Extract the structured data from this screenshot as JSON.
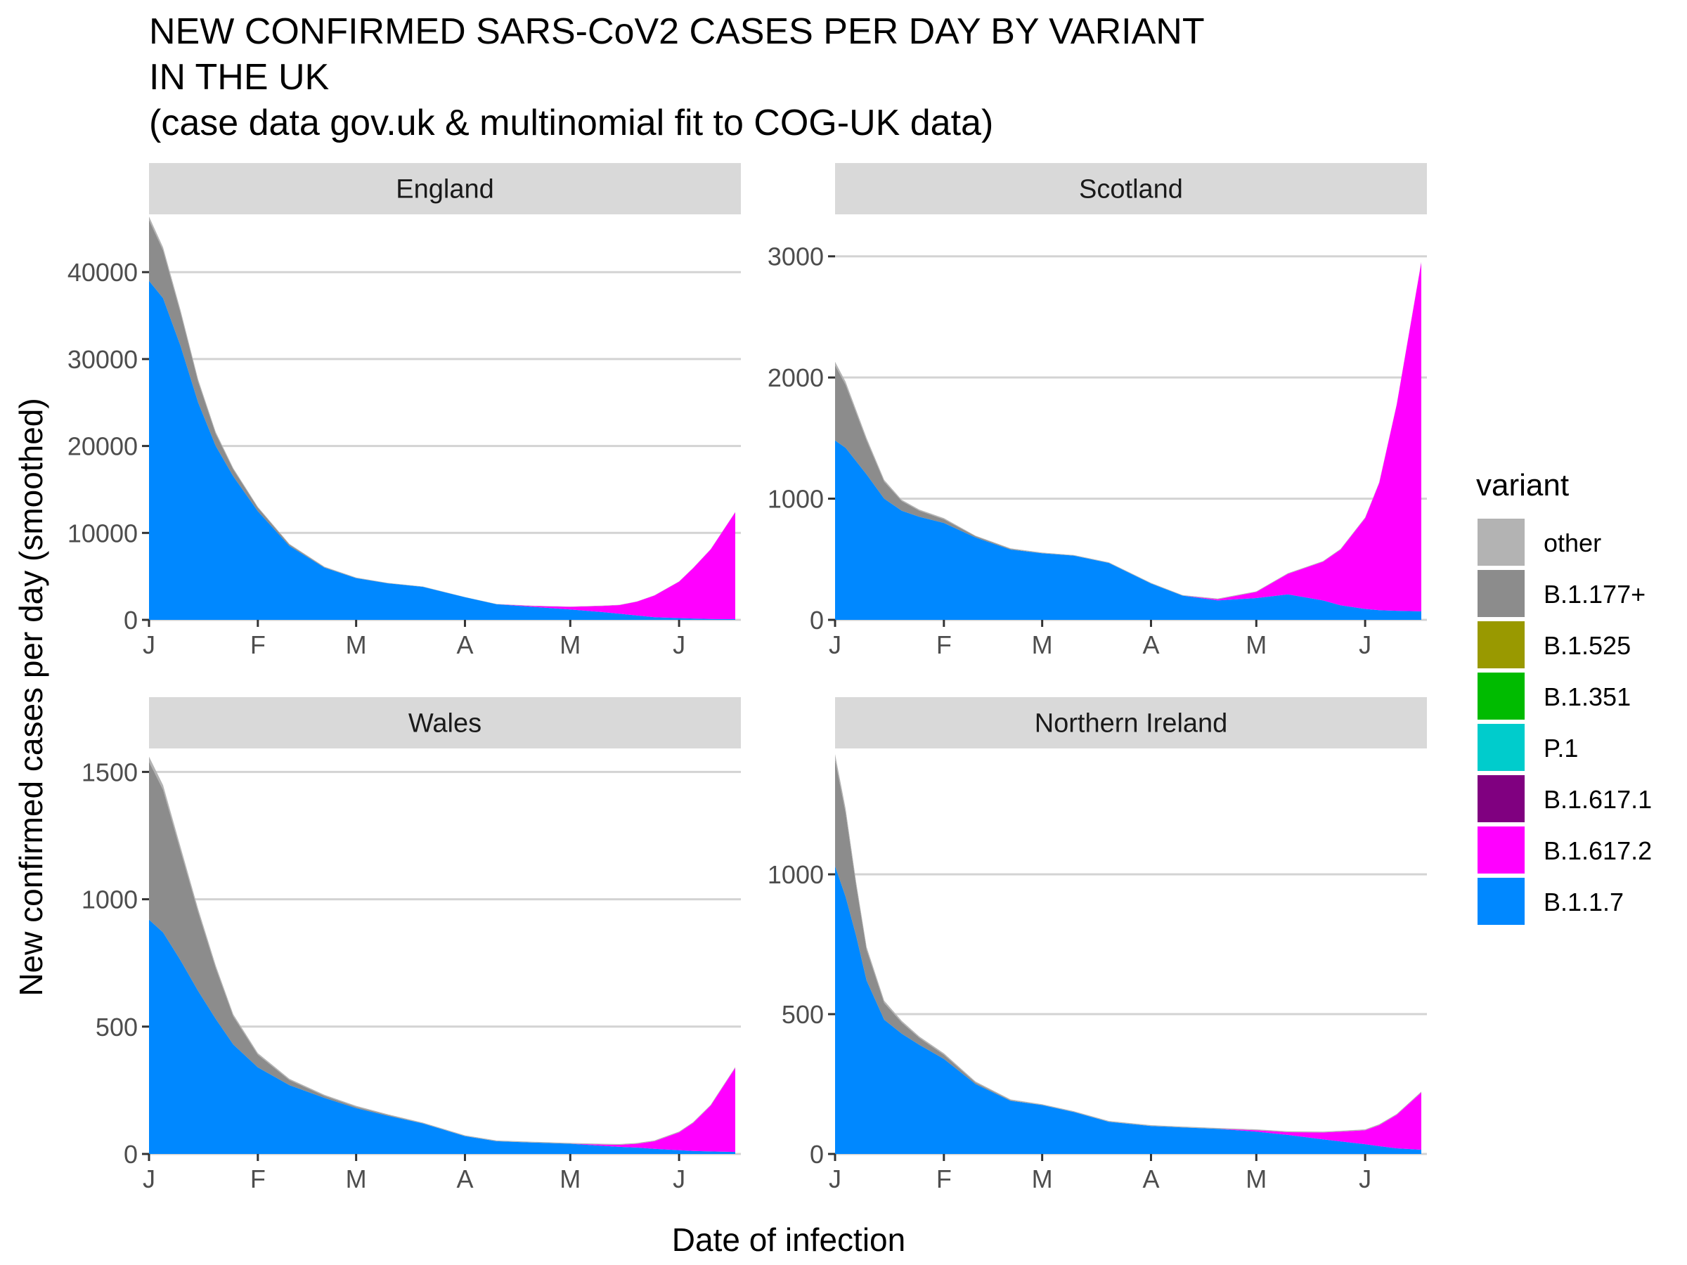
{
  "chart_data": {
    "type": "area",
    "title_lines": [
      "NEW CONFIRMED SARS-CoV2 CASES PER DAY BY VARIANT",
      "IN THE UK",
      "(case data gov.uk & multinomial fit to COG-UK data)"
    ],
    "xlabel": "Date of infection",
    "ylabel": "New confirmed cases per day (smoothed)",
    "x_tick_labels": [
      "J",
      "F",
      "M",
      "A",
      "M",
      "J"
    ],
    "x_tick_dates": [
      "2021-01-01",
      "2021-02-01",
      "2021-03-01",
      "2021-04-01",
      "2021-05-01",
      "2021-06-01"
    ],
    "x_range": [
      "2021-01-01",
      "2021-06-17"
    ],
    "grid": true,
    "legend_position": "right",
    "legend": {
      "title": "variant",
      "entries": [
        {
          "label": "other",
          "color": "#b3b3b3"
        },
        {
          "label": "B.1.177+",
          "color": "#8c8c8c"
        },
        {
          "label": "B.1.525",
          "color": "#999900"
        },
        {
          "label": "B.1.351",
          "color": "#00bb00"
        },
        {
          "label": "P.1",
          "color": "#00cccc"
        },
        {
          "label": "B.1.617.1",
          "color": "#800080"
        },
        {
          "label": "B.1.617.2",
          "color": "#ff00ff"
        },
        {
          "label": "B.1.1.7",
          "color": "#0088ff"
        }
      ]
    },
    "panels": [
      {
        "name": "England",
        "ylim": [
          0,
          46000
        ],
        "y_ticks": [
          0,
          10000,
          20000,
          30000,
          40000
        ],
        "x": [
          "2021-01-01",
          "2021-01-05",
          "2021-01-10",
          "2021-01-15",
          "2021-01-20",
          "2021-01-25",
          "2021-02-01",
          "2021-02-10",
          "2021-02-20",
          "2021-03-01",
          "2021-03-10",
          "2021-03-20",
          "2021-04-01",
          "2021-04-10",
          "2021-04-20",
          "2021-05-01",
          "2021-05-10",
          "2021-05-15",
          "2021-05-20",
          "2021-05-25",
          "2021-06-01",
          "2021-06-05",
          "2021-06-10",
          "2021-06-17"
        ],
        "series": [
          {
            "name": "B.1.1.7",
            "values": [
              39000,
              37000,
              31500,
              25000,
              20000,
              16500,
              12500,
              8500,
              6000,
              4800,
              4200,
              3800,
              2600,
              1800,
              1500,
              1200,
              900,
              700,
              500,
              300,
              200,
              150,
              100,
              80
            ]
          },
          {
            "name": "B.1.617.2",
            "values": [
              0,
              0,
              0,
              0,
              0,
              0,
              0,
              0,
              0,
              0,
              0,
              0,
              0,
              0,
              100,
              300,
              700,
              1000,
              1600,
              2500,
              4200,
              5800,
              8000,
              12300
            ]
          },
          {
            "name": "B.1.177+",
            "values": [
              7000,
              5500,
              3800,
              2400,
              1400,
              800,
              400,
              150,
              50,
              20,
              10,
              0,
              0,
              0,
              0,
              0,
              0,
              0,
              0,
              0,
              0,
              0,
              0,
              0
            ]
          },
          {
            "name": "other",
            "values": [
              400,
              350,
              300,
              250,
              200,
              150,
              100,
              80,
              60,
              50,
              40,
              40,
              30,
              30,
              30,
              30,
              30,
              30,
              30,
              30,
              30,
              30,
              30,
              30
            ]
          }
        ]
      },
      {
        "name": "Scotland",
        "ylim": [
          0,
          3300
        ],
        "y_ticks": [
          0,
          1000,
          2000,
          3000
        ],
        "x": [
          "2021-01-01",
          "2021-01-04",
          "2021-01-10",
          "2021-01-15",
          "2021-01-20",
          "2021-01-25",
          "2021-02-01",
          "2021-02-10",
          "2021-02-20",
          "2021-03-01",
          "2021-03-10",
          "2021-03-20",
          "2021-04-01",
          "2021-04-10",
          "2021-04-20",
          "2021-05-01",
          "2021-05-10",
          "2021-05-20",
          "2021-05-25",
          "2021-06-01",
          "2021-06-05",
          "2021-06-10",
          "2021-06-17"
        ],
        "series": [
          {
            "name": "B.1.1.7",
            "values": [
              1480,
              1420,
              1200,
              1000,
              900,
              850,
              800,
              680,
              580,
              550,
              530,
              470,
              300,
              200,
              160,
              180,
              210,
              160,
              120,
              90,
              80,
              75,
              70
            ]
          },
          {
            "name": "B.1.617.2",
            "values": [
              0,
              0,
              0,
              0,
              0,
              0,
              0,
              0,
              0,
              0,
              0,
              0,
              0,
              0,
              10,
              50,
              170,
              320,
              460,
              750,
              1050,
              1700,
              2880
            ]
          },
          {
            "name": "B.1.177+",
            "values": [
              620,
              520,
              280,
              140,
              80,
              50,
              30,
              10,
              5,
              0,
              0,
              0,
              0,
              0,
              0,
              0,
              0,
              0,
              0,
              0,
              0,
              0,
              0
            ]
          },
          {
            "name": "other",
            "values": [
              30,
              25,
              20,
              15,
              10,
              10,
              10,
              5,
              5,
              5,
              5,
              5,
              5,
              5,
              5,
              5,
              5,
              5,
              5,
              5,
              5,
              5,
              5
            ]
          }
        ]
      },
      {
        "name": "Wales",
        "ylim": [
          0,
          1570
        ],
        "y_ticks": [
          0,
          500,
          1000,
          1500
        ],
        "x": [
          "2021-01-01",
          "2021-01-05",
          "2021-01-10",
          "2021-01-15",
          "2021-01-20",
          "2021-01-25",
          "2021-02-01",
          "2021-02-10",
          "2021-02-20",
          "2021-03-01",
          "2021-03-10",
          "2021-03-20",
          "2021-04-01",
          "2021-04-10",
          "2021-04-20",
          "2021-05-01",
          "2021-05-10",
          "2021-05-15",
          "2021-05-20",
          "2021-05-25",
          "2021-06-01",
          "2021-06-05",
          "2021-06-10",
          "2021-06-17"
        ],
        "series": [
          {
            "name": "B.1.1.7",
            "values": [
              920,
              870,
              760,
              640,
              530,
              430,
              340,
              270,
              220,
              180,
              150,
              120,
              70,
              50,
              45,
              40,
              32,
              28,
              25,
              20,
              15,
              12,
              10,
              8
            ]
          },
          {
            "name": "B.1.617.2",
            "values": [
              0,
              0,
              0,
              0,
              0,
              0,
              0,
              0,
              0,
              0,
              0,
              0,
              0,
              0,
              0,
              0,
              5,
              8,
              15,
              30,
              70,
              110,
              180,
              330
            ]
          },
          {
            "name": "B.1.177+",
            "values": [
              620,
              560,
              430,
              310,
              200,
              110,
              50,
              20,
              8,
              5,
              3,
              0,
              0,
              0,
              0,
              0,
              0,
              0,
              0,
              0,
              0,
              0,
              0,
              0
            ]
          },
          {
            "name": "other",
            "values": [
              20,
              18,
              15,
              12,
              10,
              8,
              6,
              5,
              4,
              4,
              3,
              3,
              3,
              3,
              3,
              3,
              3,
              3,
              3,
              3,
              3,
              3,
              3,
              3
            ]
          }
        ]
      },
      {
        "name": "Northern Ireland",
        "ylim": [
          0,
          1430
        ],
        "y_ticks": [
          0,
          500,
          1000
        ],
        "x": [
          "2021-01-01",
          "2021-01-04",
          "2021-01-07",
          "2021-01-10",
          "2021-01-15",
          "2021-01-20",
          "2021-01-25",
          "2021-02-01",
          "2021-02-10",
          "2021-02-20",
          "2021-03-01",
          "2021-03-10",
          "2021-03-20",
          "2021-04-01",
          "2021-04-10",
          "2021-04-20",
          "2021-05-01",
          "2021-05-10",
          "2021-05-20",
          "2021-05-25",
          "2021-06-01",
          "2021-06-05",
          "2021-06-10",
          "2021-06-17"
        ],
        "series": [
          {
            "name": "B.1.1.7",
            "values": [
              1030,
              920,
              780,
              620,
              480,
              430,
              390,
              340,
              250,
              190,
              175,
              150,
              115,
              100,
              95,
              90,
              80,
              68,
              52,
              45,
              35,
              28,
              20,
              15
            ]
          },
          {
            "name": "B.1.617.2",
            "values": [
              0,
              0,
              0,
              0,
              0,
              0,
              0,
              0,
              0,
              0,
              0,
              0,
              0,
              0,
              0,
              0,
              5,
              10,
              25,
              35,
              50,
              75,
              120,
              205
            ]
          },
          {
            "name": "B.1.177+",
            "values": [
              380,
              300,
              180,
              110,
              60,
              40,
              25,
              15,
              5,
              2,
              0,
              0,
              0,
              0,
              0,
              0,
              0,
              0,
              0,
              0,
              0,
              0,
              0,
              0
            ]
          },
          {
            "name": "other",
            "values": [
              20,
              15,
              12,
              10,
              8,
              6,
              5,
              5,
              4,
              3,
              3,
              3,
              3,
              3,
              3,
              3,
              3,
              3,
              3,
              3,
              3,
              3,
              3,
              3
            ]
          }
        ]
      }
    ]
  }
}
